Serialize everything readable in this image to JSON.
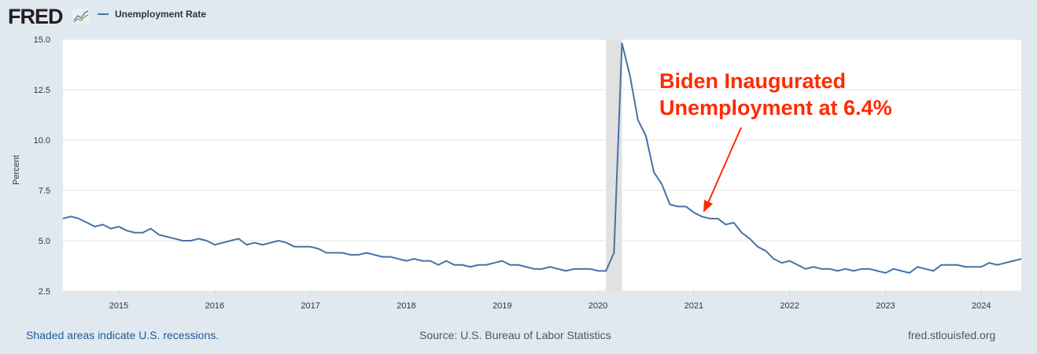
{
  "header": {
    "logo_text": "FRED",
    "legend_label": "Unemployment Rate",
    "series_color": "#4572a7"
  },
  "footer": {
    "recession_note": "Shaded areas indicate U.S. recessions.",
    "source": "Source: U.S. Bureau of Labor Statistics",
    "site": "fred.stlouisfed.org"
  },
  "chart_data": {
    "type": "line",
    "title": "Unemployment Rate",
    "ylabel": "Percent",
    "xlabel": "",
    "ylim": [
      2.5,
      15.0
    ],
    "yticks": [
      "2.5",
      "5.0",
      "7.5",
      "10.0",
      "12.5",
      "15.0"
    ],
    "xticks": [
      "2015",
      "2016",
      "2017",
      "2018",
      "2019",
      "2020",
      "2021",
      "2022",
      "2023",
      "2024"
    ],
    "start": "2014-06",
    "frequency": "monthly",
    "values": [
      6.1,
      6.2,
      6.1,
      5.9,
      5.7,
      5.8,
      5.6,
      5.7,
      5.5,
      5.4,
      5.4,
      5.6,
      5.3,
      5.2,
      5.1,
      5.0,
      5.0,
      5.1,
      5.0,
      4.8,
      4.9,
      5.0,
      5.1,
      4.8,
      4.9,
      4.8,
      4.9,
      5.0,
      4.9,
      4.7,
      4.7,
      4.7,
      4.6,
      4.4,
      4.4,
      4.4,
      4.3,
      4.3,
      4.4,
      4.3,
      4.2,
      4.2,
      4.1,
      4.0,
      4.1,
      4.0,
      4.0,
      3.8,
      4.0,
      3.8,
      3.8,
      3.7,
      3.8,
      3.8,
      3.9,
      4.0,
      3.8,
      3.8,
      3.7,
      3.6,
      3.6,
      3.7,
      3.6,
      3.5,
      3.6,
      3.6,
      3.6,
      3.5,
      3.5,
      4.4,
      14.8,
      13.2,
      11.0,
      10.2,
      8.4,
      7.8,
      6.8,
      6.7,
      6.7,
      6.4,
      6.2,
      6.1,
      6.1,
      5.8,
      5.9,
      5.4,
      5.1,
      4.7,
      4.5,
      4.1,
      3.9,
      4.0,
      3.8,
      3.6,
      3.7,
      3.6,
      3.6,
      3.5,
      3.6,
      3.5,
      3.6,
      3.6,
      3.5,
      3.4,
      3.6,
      3.5,
      3.4,
      3.7,
      3.6,
      3.5,
      3.8,
      3.8,
      3.8,
      3.7,
      3.7,
      3.7,
      3.9,
      3.8,
      3.9,
      4.0,
      4.1
    ],
    "recessions": [
      [
        "2020-02",
        "2020-04"
      ]
    ],
    "annotation": {
      "line1": "Biden Inaugurated",
      "line2": "Unemployment at 6.4%",
      "points_to": "2021-01",
      "color": "#ff2a00"
    },
    "grid": true
  }
}
